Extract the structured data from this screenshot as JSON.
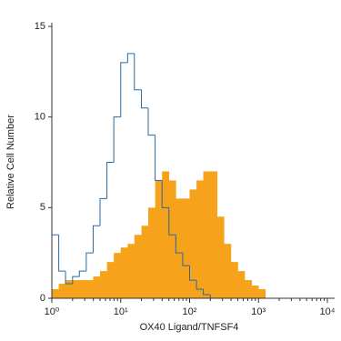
{
  "chart_data": {
    "type": "histogram",
    "x_label": "OX40 Ligand/TNFSF4",
    "y_label": "Relative Cell Number",
    "log_x": true,
    "xlim": [
      1,
      10000
    ],
    "ylim": [
      0,
      15
    ],
    "xticks": [
      {
        "value": 1,
        "label": "10⁰"
      },
      {
        "value": 10,
        "label": "10¹"
      },
      {
        "value": 100,
        "label": "10²"
      },
      {
        "value": 1000,
        "label": "10³"
      },
      {
        "value": 10000,
        "label": "10⁴"
      }
    ],
    "yticks": [
      0,
      5,
      10,
      15
    ],
    "bins": [
      1,
      1.26,
      1.58,
      2,
      2.51,
      3.16,
      3.98,
      5.01,
      6.31,
      7.94,
      10,
      12.6,
      15.8,
      20,
      25.1,
      31.6,
      39.8,
      50.1,
      63.1,
      79.4,
      100,
      126,
      158,
      200,
      251,
      316,
      398,
      501,
      631,
      794,
      1000,
      1259
    ],
    "series": [
      {
        "color": "#f7a21b",
        "filled": true,
        "values": [
          0.5,
          0.8,
          1,
          1,
          1,
          1,
          1.2,
          1.5,
          2,
          2.5,
          2.8,
          3,
          3.5,
          4,
          5,
          6.5,
          7,
          6.5,
          5.5,
          5.5,
          6,
          6.5,
          7,
          7,
          4.5,
          3,
          2,
          1.5,
          1,
          0.7,
          0.5
        ]
      },
      {
        "color": "#2a6a9e",
        "filled": false,
        "values": [
          3.5,
          1.5,
          0.8,
          1.2,
          1.5,
          2.5,
          4,
          5.5,
          7.5,
          10,
          13,
          13.5,
          11.5,
          10.5,
          9,
          6.5,
          5,
          3.5,
          2.5,
          1.8,
          1,
          0.5,
          0.2,
          0,
          0,
          0,
          0,
          0,
          0,
          0,
          0
        ]
      }
    ]
  }
}
